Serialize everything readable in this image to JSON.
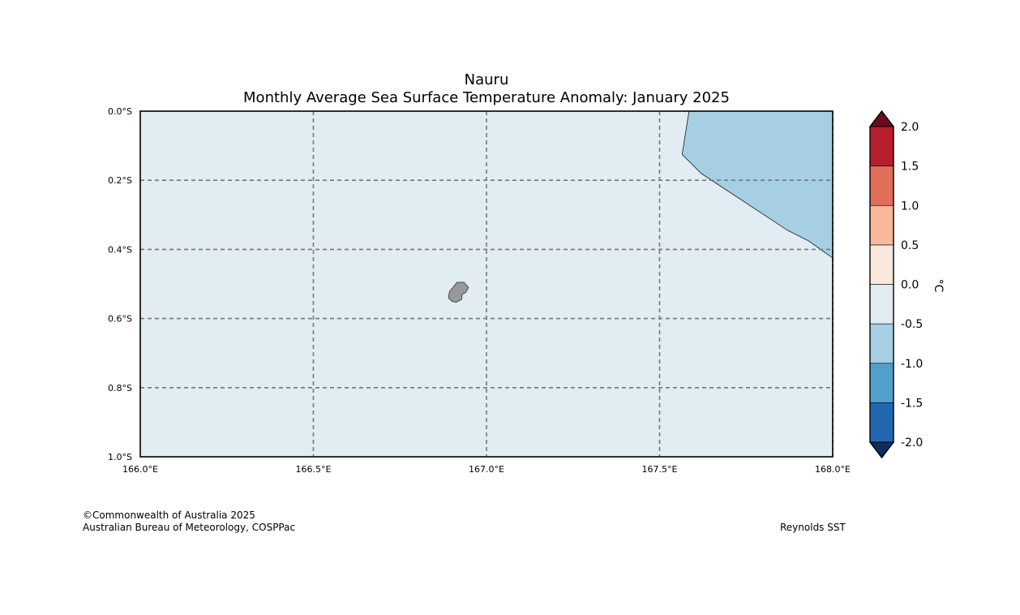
{
  "title": "Nauru",
  "subtitle": "Monthly Average Sea Surface Temperature Anomaly: January 2025",
  "map": {
    "lon_range": [
      166.0,
      168.0
    ],
    "lat_range": [
      -1.0,
      0.0
    ],
    "lon_ticks": [
      {
        "value": 166.0,
        "label": "166.0°E"
      },
      {
        "value": 166.5,
        "label": "166.5°E"
      },
      {
        "value": 167.0,
        "label": "167.0°E"
      },
      {
        "value": 167.5,
        "label": "167.5°E"
      },
      {
        "value": 168.0,
        "label": "168.0°E"
      }
    ],
    "lat_ticks": [
      {
        "value": 0.0,
        "label": "0.0°S"
      },
      {
        "value": -0.2,
        "label": "0.2°S"
      },
      {
        "value": -0.4,
        "label": "0.4°S"
      },
      {
        "value": -0.6,
        "label": "0.6°S"
      },
      {
        "value": -0.8,
        "label": "0.8°S"
      },
      {
        "value": -1.0,
        "label": "1.0°S"
      }
    ],
    "gridlines": true,
    "background_anomaly_band": "0.0 to -0.5",
    "background_color": "#e1ecf3",
    "cool_region_band": "-0.5 to -1.0",
    "cool_region_color": "#a6cfe4",
    "cool_region_outline": [
      [
        167.585,
        0.0
      ],
      [
        168.0,
        0.0
      ],
      [
        168.0,
        -0.425
      ],
      [
        167.93,
        -0.375
      ],
      [
        167.87,
        -0.345
      ],
      [
        167.62,
        -0.18
      ],
      [
        167.565,
        -0.125
      ]
    ],
    "land_color": "#999999",
    "island_name_hidden": "Nauru",
    "island_outline": [
      [
        166.915,
        -0.495
      ],
      [
        166.935,
        -0.495
      ],
      [
        166.948,
        -0.51
      ],
      [
        166.94,
        -0.525
      ],
      [
        166.93,
        -0.53
      ],
      [
        166.928,
        -0.545
      ],
      [
        166.912,
        -0.553
      ],
      [
        166.9,
        -0.55
      ],
      [
        166.89,
        -0.54
      ],
      [
        166.893,
        -0.522
      ],
      [
        166.905,
        -0.508
      ]
    ]
  },
  "colorbar": {
    "unit": "°C",
    "levels": [
      -2.0,
      -1.5,
      -1.0,
      -0.5,
      0.0,
      0.5,
      1.0,
      1.5,
      2.0
    ],
    "labels": [
      "-2.0",
      "-1.5",
      "-1.0",
      "-0.5",
      "0.0",
      "0.5",
      "1.0",
      "1.5",
      "2.0"
    ],
    "colors": [
      "#2367b0",
      "#539fcc",
      "#a6cfe4",
      "#e1ecf3",
      "#fae8dc",
      "#f7b89b",
      "#e06e58",
      "#b81f2e"
    ],
    "under_color": "#0c2f5f",
    "over_color": "#6a0b1f"
  },
  "footer": {
    "credit_line1": "©Commonwealth of Australia 2025",
    "credit_line2": "Australian Bureau of Meteorology, COSPPac",
    "source": "Reynolds SST"
  }
}
